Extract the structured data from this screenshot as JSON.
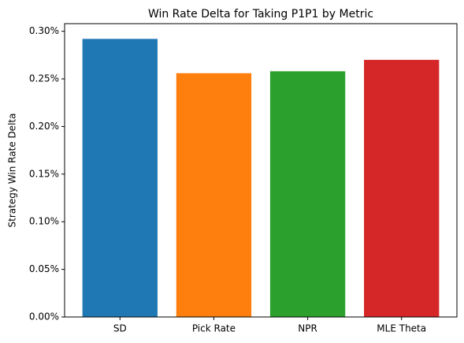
{
  "chart_data": {
    "type": "bar",
    "title": "Win Rate Delta for Taking P1P1 by Metric",
    "y_label": "Strategy Win Rate Delta",
    "categories": [
      "SD",
      "Pick Rate",
      "NPR",
      "MLE Theta"
    ],
    "values": [
      0.292,
      0.256,
      0.258,
      0.27
    ],
    "colors": [
      "#1f77b4",
      "#ff7f0e",
      "#2ca02c",
      "#d62728"
    ],
    "ylim": [
      0,
      0.308
    ],
    "yticks": [
      {
        "value": 0,
        "label": "0.00%"
      },
      {
        "value": 0.05,
        "label": "0.05%"
      },
      {
        "value": 0.1,
        "label": "0.10%"
      },
      {
        "value": 0.15,
        "label": "0.15%"
      },
      {
        "value": 0.2,
        "label": "0.20%"
      },
      {
        "value": 0.25,
        "label": "0.25%"
      },
      {
        "value": 0.3,
        "label": "0.30%"
      }
    ],
    "grid": false
  }
}
